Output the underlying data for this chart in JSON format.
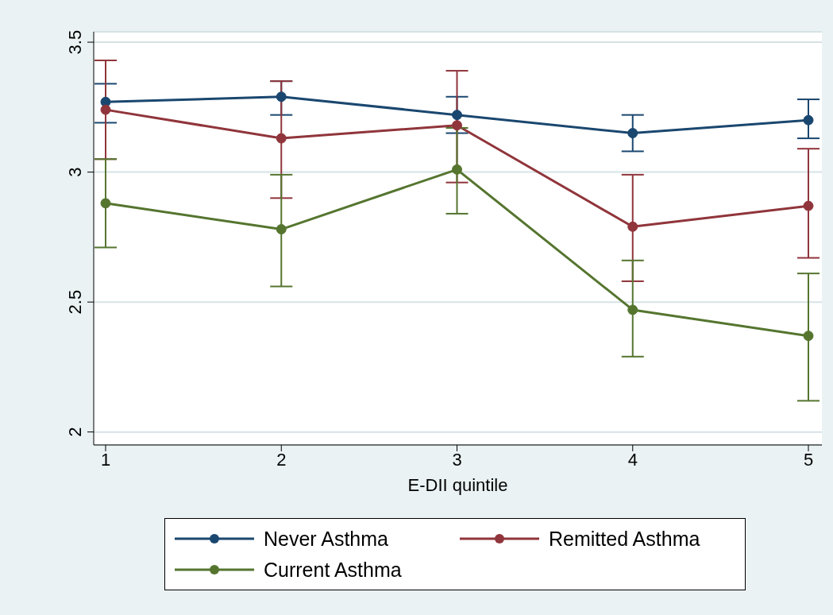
{
  "chart_data": {
    "type": "line",
    "xlabel": "E-DII quintile",
    "categories": [
      "1",
      "2",
      "3",
      "4",
      "5"
    ],
    "ylim": [
      1.95,
      3.54
    ],
    "yticks": [
      2,
      2.5,
      3,
      3.5
    ],
    "grid": "y",
    "legend": "bottom",
    "marker": "circle",
    "line_style": "solid",
    "series": [
      {
        "name": "Never Asthma",
        "color": "#1a476f",
        "values": [
          3.27,
          3.29,
          3.22,
          3.15,
          3.2
        ],
        "errors": [
          [
            3.19,
            3.34
          ],
          [
            3.22,
            3.35
          ],
          [
            3.15,
            3.29
          ],
          [
            3.08,
            3.22
          ],
          [
            3.13,
            3.28
          ]
        ]
      },
      {
        "name": "Remitted Asthma",
        "color": "#90353b",
        "values": [
          3.24,
          3.13,
          3.18,
          2.79,
          2.87
        ],
        "errors": [
          [
            3.05,
            3.43
          ],
          [
            2.9,
            3.35
          ],
          [
            2.96,
            3.39
          ],
          [
            2.58,
            2.99
          ],
          [
            2.67,
            3.09
          ]
        ]
      },
      {
        "name": "Current Asthma",
        "color": "#55752f",
        "values": [
          2.88,
          2.78,
          3.01,
          2.47,
          2.37
        ],
        "errors": [
          [
            2.71,
            3.05
          ],
          [
            2.56,
            2.99
          ],
          [
            2.84,
            3.17
          ],
          [
            2.29,
            2.66
          ],
          [
            2.12,
            2.61
          ]
        ]
      }
    ]
  }
}
